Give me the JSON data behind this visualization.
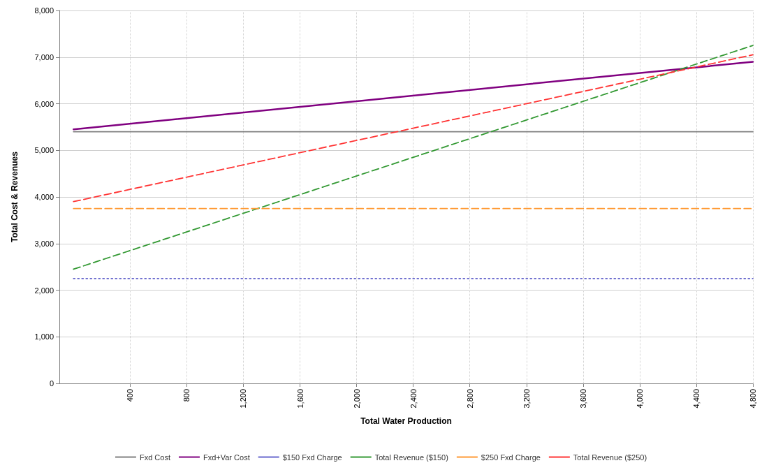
{
  "chart_data": {
    "type": "line",
    "xlabel": "Total Water Production",
    "ylabel": "Total Cost & Revenues",
    "x": [
      0,
      4800
    ],
    "series": [
      {
        "name": "Fxd Cost",
        "color": "#808080",
        "values": [
          5400,
          5400
        ],
        "line_style": "solid"
      },
      {
        "name": "Fxd+Var Cost",
        "color": "#800080",
        "values": [
          5450,
          6900
        ],
        "line_style": "solid"
      },
      {
        "name": "$150 Fxd Charge",
        "color": "#6666cc",
        "values": [
          2250,
          2250
        ],
        "line_style": "dotted"
      },
      {
        "name": "Total Revenue ($150)",
        "color": "#339933",
        "values": [
          2450,
          7250
        ],
        "line_style": "dashed"
      },
      {
        "name": "$250 Fxd Charge",
        "color": "#ff9933",
        "values": [
          3750,
          3750
        ],
        "line_style": "dashed"
      },
      {
        "name": "Total Revenue ($250)",
        "color": "#ff3333",
        "values": [
          3900,
          7050
        ],
        "line_style": "dashed"
      }
    ],
    "xlim": [
      -100,
      4800
    ],
    "xticks": [
      400,
      800,
      {
        "value": 1200,
        "label": "1,200"
      },
      {
        "value": 1600,
        "label": "1,600"
      },
      {
        "value": 2000,
        "label": "2,000"
      },
      {
        "value": 2400,
        "label": "2,400"
      },
      {
        "value": 2800,
        "label": "2,800"
      },
      {
        "value": 3200,
        "label": "3,200"
      },
      {
        "value": 3600,
        "label": "3,600"
      },
      {
        "value": 4000,
        "label": "4,000"
      },
      {
        "value": 4400,
        "label": "4,400"
      },
      {
        "value": 4800,
        "label": "4,800"
      }
    ],
    "ylim": [
      0,
      8000
    ],
    "yticks": [
      0,
      {
        "value": 1000,
        "label": "1,000"
      },
      {
        "value": 2000,
        "label": "2,000"
      },
      {
        "value": 3000,
        "label": "3,000"
      },
      {
        "value": 4000,
        "label": "4,000"
      },
      {
        "value": 5000,
        "label": "5,000"
      },
      {
        "value": 6000,
        "label": "6,000"
      },
      {
        "value": 7000,
        "label": "7,000"
      },
      {
        "value": 8000,
        "label": "8,000"
      }
    ],
    "grid": true,
    "legend": "bottom",
    "marker": "none"
  }
}
